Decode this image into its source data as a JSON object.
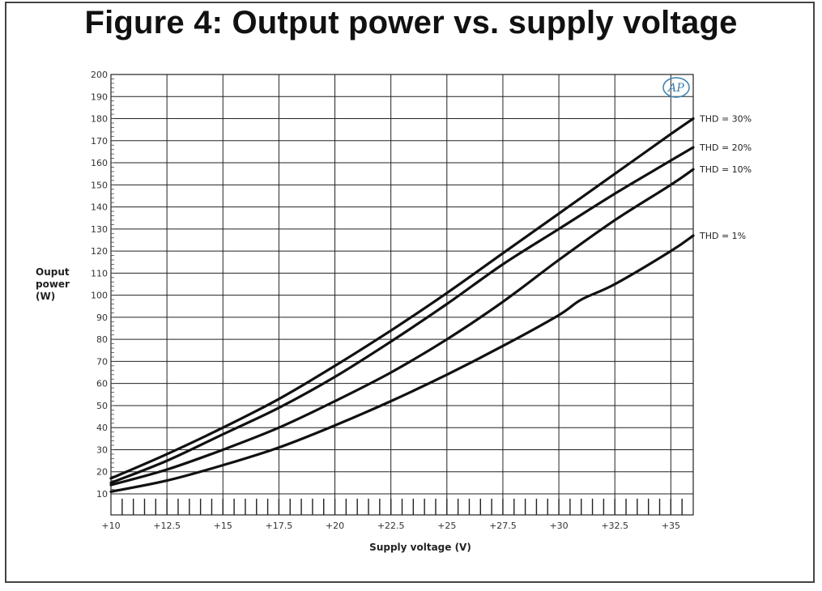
{
  "title": "Figure 4: Output power vs. supply voltage",
  "logo_text": "AP",
  "chart_data": {
    "type": "line",
    "title": "Figure 4: Output power vs. supply voltage",
    "xlabel": "Supply voltage (V)",
    "ylabel": [
      "Ouput",
      "power",
      "(W)"
    ],
    "xlim": [
      10,
      36
    ],
    "ylim": [
      0,
      200
    ],
    "grid": true,
    "x_ticks": [
      "+10",
      "+12.5",
      "+15",
      "+17.5",
      "+20",
      "+22.5",
      "+25",
      "+27.5",
      "+30",
      "+32.5",
      "+35"
    ],
    "y_ticks": [
      "10",
      "20",
      "30",
      "40",
      "50",
      "60",
      "70",
      "80",
      "90",
      "100",
      "110",
      "120",
      "130",
      "140",
      "150",
      "160",
      "170",
      "180",
      "190",
      "200"
    ],
    "series": [
      {
        "name": "THD = 30%",
        "x": [
          10,
          12.5,
          15,
          17.5,
          20,
          22.5,
          25,
          27.5,
          30,
          32.5,
          35,
          36
        ],
        "y": [
          17,
          28,
          40,
          53,
          68,
          84,
          101,
          119,
          137,
          155,
          173,
          180
        ]
      },
      {
        "name": "THD = 20%",
        "x": [
          10,
          12.5,
          15,
          17.5,
          20,
          22.5,
          25,
          27.5,
          30,
          32.5,
          35,
          36
        ],
        "y": [
          15,
          25,
          37,
          49,
          63,
          79,
          96,
          114,
          130,
          146,
          161,
          167
        ]
      },
      {
        "name": "THD = 10%",
        "x": [
          10,
          12.5,
          15,
          17.5,
          20,
          22.5,
          25,
          27.5,
          30,
          32.5,
          35,
          36
        ],
        "y": [
          14,
          21,
          30,
          40,
          52,
          65,
          80,
          97,
          116,
          134,
          150,
          157
        ]
      },
      {
        "name": "THD = 1%",
        "x": [
          10,
          12.5,
          15,
          17.5,
          20,
          22.5,
          25,
          27.5,
          30,
          31,
          32.5,
          35,
          36
        ],
        "y": [
          11,
          16,
          23,
          31,
          41,
          52,
          64,
          77,
          91,
          98,
          105,
          120,
          127
        ]
      }
    ]
  }
}
